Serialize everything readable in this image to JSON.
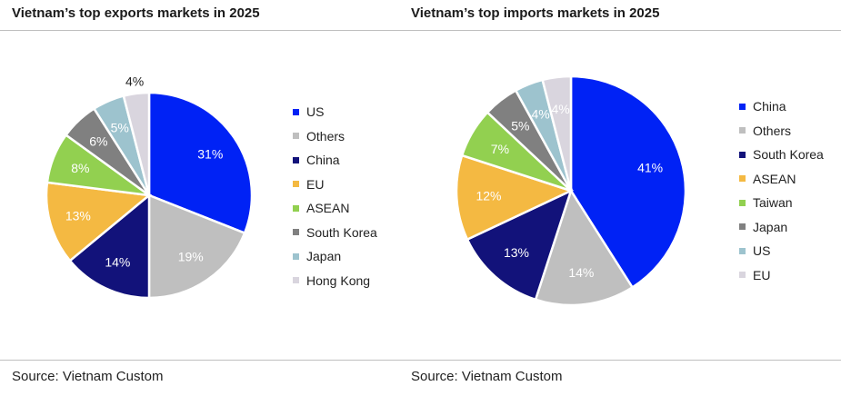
{
  "chart_data": [
    {
      "type": "pie",
      "title": "Vietnam’s top exports markets in 2025",
      "source": "Source: Vietnam Custom",
      "legend_position": "right",
      "categories": [
        "US",
        "Others",
        "China",
        "EU",
        "ASEAN",
        "South Korea",
        "Japan",
        "Hong Kong"
      ],
      "values": [
        31,
        19,
        14,
        13,
        8,
        6,
        5,
        4
      ],
      "labels": [
        "31%",
        "19%",
        "14%",
        "13%",
        "8%",
        "6%",
        "5%",
        "4%"
      ],
      "colors": [
        "#0022F5",
        "#BFBFBF",
        "#12127A",
        "#F4B942",
        "#92D050",
        "#808080",
        "#9DC3CE",
        "#D9D5DE"
      ]
    },
    {
      "type": "pie",
      "title": "Vietnam’s top imports markets in 2025",
      "source": "Source: Vietnam Custom",
      "legend_position": "right",
      "categories": [
        "China",
        "Others",
        "South Korea",
        "ASEAN",
        "Taiwan",
        "Japan",
        "US",
        "EU"
      ],
      "values": [
        41,
        14,
        13,
        12,
        7,
        5,
        4,
        4
      ],
      "labels": [
        "41%",
        "14%",
        "13%",
        "12%",
        "7%",
        "5%",
        "4%",
        "4%"
      ],
      "colors": [
        "#0022F5",
        "#BFBFBF",
        "#12127A",
        "#F4B942",
        "#92D050",
        "#808080",
        "#9DC3CE",
        "#D9D5DE"
      ]
    }
  ]
}
